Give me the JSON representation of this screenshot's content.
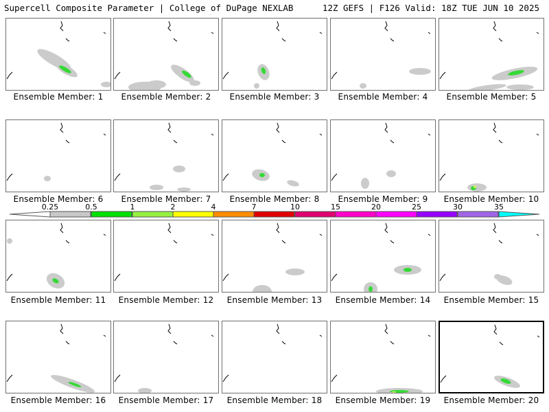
{
  "header": {
    "left": "Supercell Composite Parameter | College of DuPage NEXLAB",
    "right": "12Z GEFS | F126 Valid: 18Z TUE JUN 10 2025"
  },
  "legend": {
    "ticks": [
      "0.25",
      "0.5",
      "1",
      "2",
      "4",
      "7",
      "10",
      "15",
      "20",
      "25",
      "30",
      "35"
    ],
    "colors": [
      "#c8c8c8",
      "#00e000",
      "#96f040",
      "#ffff00",
      "#ff8c00",
      "#e00000",
      "#e0006e",
      "#ff00c8",
      "#ff00ff",
      "#9600ff",
      "#a064e6",
      "#00ffff"
    ]
  },
  "panels": [
    {
      "label": "Ensemble Member: 1"
    },
    {
      "label": "Ensemble Member: 2"
    },
    {
      "label": "Ensemble Member: 3"
    },
    {
      "label": "Ensemble Member: 4"
    },
    {
      "label": "Ensemble Member: 5"
    },
    {
      "label": "Ensemble Member: 6"
    },
    {
      "label": "Ensemble Member: 7"
    },
    {
      "label": "Ensemble Member: 8"
    },
    {
      "label": "Ensemble Member: 9"
    },
    {
      "label": "Ensemble Member: 10"
    },
    {
      "label": "Ensemble Member: 11"
    },
    {
      "label": "Ensemble Member: 12"
    },
    {
      "label": "Ensemble Member: 13"
    },
    {
      "label": "Ensemble Member: 14"
    },
    {
      "label": "Ensemble Member: 15"
    },
    {
      "label": "Ensemble Member: 16"
    },
    {
      "label": "Ensemble Member: 17"
    },
    {
      "label": "Ensemble Member: 18"
    },
    {
      "label": "Ensemble Member: 19"
    },
    {
      "label": "Ensemble Member: 20"
    }
  ],
  "selected_panel": "Ensemble Member: 20"
}
